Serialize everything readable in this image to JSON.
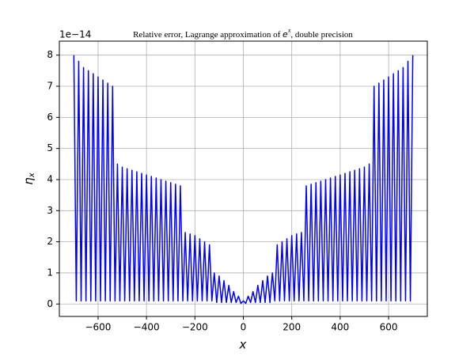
{
  "chart_data": {
    "type": "line",
    "title": [
      "Relative error, Lagrange approximation of ",
      "e",
      "x",
      ", double precision"
    ],
    "xlabel": "x",
    "ylabel": "η",
    "ylabel_sub": "x",
    "offset_text": "1e−14",
    "xlim": [
      -760,
      760
    ],
    "ylim": [
      -0.4,
      8.45
    ],
    "xticks": [
      {
        "value": -600,
        "label": "−600"
      },
      {
        "value": -400,
        "label": "−400"
      },
      {
        "value": -200,
        "label": "−200"
      },
      0,
      200,
      400,
      600
    ],
    "yticks": [
      0,
      1,
      2,
      3,
      4,
      5,
      6,
      7,
      8
    ],
    "grid": true,
    "series": [
      {
        "color": "#0000ff",
        "x": [
          -700,
          -690,
          -680,
          -670,
          -660,
          -650,
          -640,
          -630,
          -620,
          -610,
          -600,
          -590,
          -580,
          -570,
          -560,
          -550,
          -540,
          -530,
          -520,
          -510,
          -500,
          -490,
          -480,
          -470,
          -460,
          -450,
          -440,
          -430,
          -420,
          -410,
          -400,
          -390,
          -380,
          -370,
          -360,
          -350,
          -340,
          -330,
          -320,
          -310,
          -300,
          -290,
          -280,
          -270,
          -260,
          -250,
          -240,
          -230,
          -220,
          -210,
          -200,
          -190,
          -180,
          -170,
          -160,
          -150,
          -140,
          -130,
          -120,
          -110,
          -100,
          -90,
          -80,
          -70,
          -60,
          -50,
          -40,
          -30,
          -20,
          -10,
          0,
          10,
          20,
          30,
          40,
          50,
          60,
          70,
          80,
          90,
          100,
          110,
          120,
          130,
          140,
          150,
          160,
          170,
          180,
          190,
          200,
          210,
          220,
          230,
          240,
          250,
          260,
          270,
          280,
          290,
          300,
          310,
          320,
          330,
          340,
          350,
          360,
          370,
          380,
          390,
          400,
          410,
          420,
          430,
          440,
          450,
          460,
          470,
          480,
          490,
          500,
          510,
          520,
          530,
          540,
          550,
          560,
          570,
          580,
          590,
          600,
          610,
          620,
          630,
          640,
          650,
          660,
          670,
          680,
          690,
          700
        ],
        "values": [
          8.0,
          0.1,
          7.8,
          0.1,
          7.6,
          0.1,
          7.5,
          0.1,
          7.4,
          0.1,
          7.3,
          0.1,
          7.2,
          0.1,
          7.1,
          0.1,
          7.0,
          0.1,
          4.5,
          0.1,
          4.4,
          0.1,
          4.35,
          0.1,
          4.3,
          0.1,
          4.25,
          0.1,
          4.2,
          0.1,
          4.15,
          0.1,
          4.1,
          0.1,
          4.05,
          0.1,
          4.0,
          0.1,
          3.95,
          0.1,
          3.9,
          0.1,
          3.85,
          0.1,
          3.8,
          0.1,
          2.3,
          0.1,
          2.25,
          0.1,
          2.2,
          0.1,
          2.1,
          0.1,
          2.0,
          0.1,
          1.9,
          0.1,
          1.0,
          0.05,
          0.9,
          0.05,
          0.75,
          0.05,
          0.6,
          0.05,
          0.4,
          0.05,
          0.25,
          0.02,
          0.1,
          0.02,
          0.25,
          0.05,
          0.4,
          0.05,
          0.6,
          0.05,
          0.75,
          0.05,
          0.9,
          0.05,
          1.0,
          0.1,
          1.9,
          0.1,
          2.0,
          0.1,
          2.1,
          0.1,
          2.2,
          0.1,
          2.25,
          0.1,
          2.3,
          0.1,
          3.8,
          0.1,
          3.85,
          0.1,
          3.9,
          0.1,
          3.95,
          0.1,
          4.0,
          0.1,
          4.05,
          0.1,
          4.1,
          0.1,
          4.15,
          0.1,
          4.2,
          0.1,
          4.25,
          0.1,
          4.3,
          0.1,
          4.35,
          0.1,
          4.4,
          0.1,
          4.5,
          0.1,
          7.0,
          0.1,
          7.1,
          0.1,
          7.2,
          0.1,
          7.3,
          0.1,
          7.4,
          0.1,
          7.5,
          0.1,
          7.6,
          0.1,
          7.8,
          0.1,
          8.0
        ]
      }
    ]
  }
}
